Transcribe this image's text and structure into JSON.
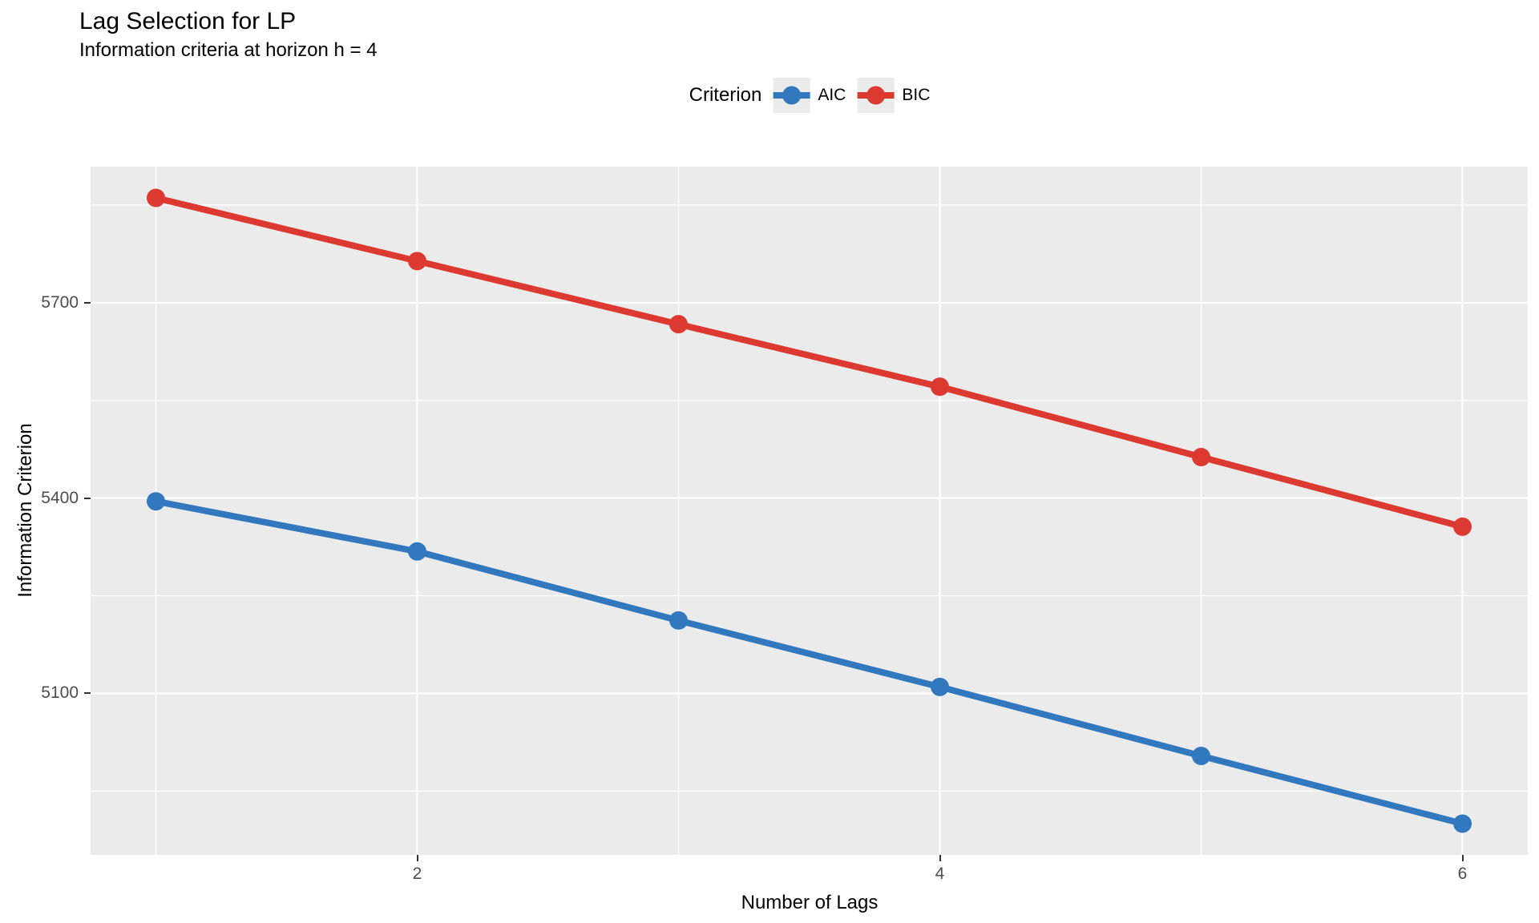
{
  "title": "Lag Selection for LP",
  "subtitle": "Information criteria at horizon h = 4",
  "legend": {
    "title": "Criterion",
    "entries": [
      {
        "label": "AIC",
        "color": "#3178BE"
      },
      {
        "label": "BIC",
        "color": "#DC3A31"
      }
    ]
  },
  "axes": {
    "xlabel": "Number of Lags",
    "ylabel": "Information Criterion"
  },
  "chart_data": {
    "type": "line",
    "title": "Lag Selection for LP",
    "subtitle": "Information criteria at horizon h = 4",
    "xlabel": "Number of Lags",
    "ylabel": "Information Criterion",
    "x": [
      1,
      2,
      3,
      4,
      5,
      6
    ],
    "series": [
      {
        "name": "AIC",
        "color": "#3178BE",
        "values": [
          5395,
          5318,
          5212,
          5110,
          5004,
          4900
        ]
      },
      {
        "name": "BIC",
        "color": "#DC3A31",
        "values": [
          5861,
          5764,
          5667,
          5571,
          5463,
          5356
        ]
      }
    ],
    "x_ticks": [
      2,
      4,
      6
    ],
    "x_minor_gridlines": [
      1,
      3,
      5
    ],
    "y_ticks": [
      5100,
      5400,
      5700
    ],
    "y_minor_gridlines": [
      4950,
      5250,
      5550,
      5850
    ],
    "xlim": [
      0.75,
      6.25
    ],
    "ylim": [
      4852,
      5909
    ],
    "grid": true,
    "legend_position": "top",
    "panel_bg": "#EBEBEB",
    "grid_color": "#FFFFFF"
  }
}
